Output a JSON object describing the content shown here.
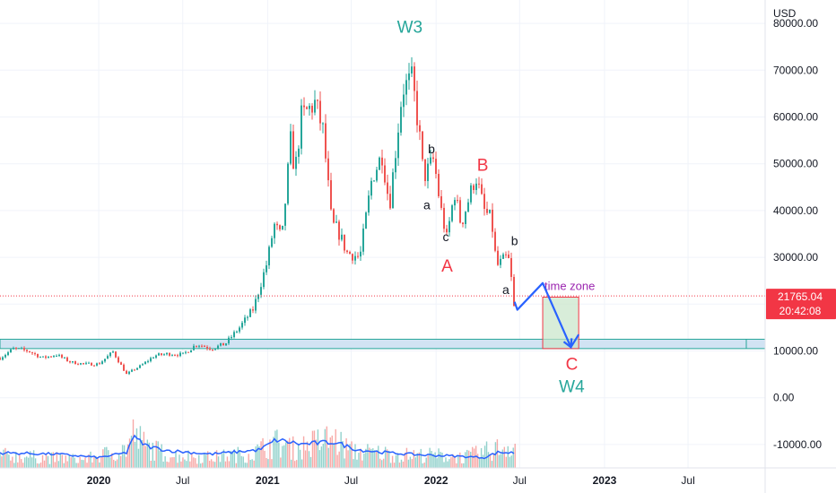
{
  "chart_data": {
    "type": "candlestick",
    "symbol_currency": "USD",
    "y_axis": {
      "min": -15000,
      "max": 85000,
      "ticks": [
        80000,
        70000,
        60000,
        50000,
        40000,
        30000,
        20000,
        10000,
        0,
        -10000
      ],
      "tick_labels": [
        "80000.00",
        "70000.00",
        "60000.00",
        "50000.00",
        "40000.00",
        "30000.00",
        "20000.00",
        "10000.00",
        "0.00",
        "-10000.00"
      ]
    },
    "x_axis": {
      "start": "2019-06-01",
      "end": "2023-12-15",
      "ticks": [
        {
          "date": "2020-01-01",
          "label": "2020",
          "bold": true
        },
        {
          "date": "2020-07-01",
          "label": "Jul",
          "bold": false
        },
        {
          "date": "2021-01-01",
          "label": "2021",
          "bold": true
        },
        {
          "date": "2021-07-01",
          "label": "Jul",
          "bold": false
        },
        {
          "date": "2022-01-01",
          "label": "2022",
          "bold": true
        },
        {
          "date": "2022-07-01",
          "label": "Jul",
          "bold": false
        },
        {
          "date": "2023-01-01",
          "label": "2023",
          "bold": true
        },
        {
          "date": "2023-07-01",
          "label": "Jul",
          "bold": false
        }
      ]
    },
    "price_series": [
      [
        "2019-06-01",
        8500
      ],
      [
        "2019-07-01",
        10500
      ],
      [
        "2019-08-01",
        10000
      ],
      [
        "2019-09-01",
        8500
      ],
      [
        "2019-10-01",
        9200
      ],
      [
        "2019-11-01",
        7600
      ],
      [
        "2019-12-01",
        7200
      ],
      [
        "2020-01-01",
        7200
      ],
      [
        "2020-02-01",
        9800
      ],
      [
        "2020-03-01",
        5000
      ],
      [
        "2020-03-20",
        6200
      ],
      [
        "2020-04-01",
        6800
      ],
      [
        "2020-05-01",
        9000
      ],
      [
        "2020-06-01",
        9400
      ],
      [
        "2020-07-01",
        9200
      ],
      [
        "2020-08-01",
        11500
      ],
      [
        "2020-09-01",
        10500
      ],
      [
        "2020-10-01",
        11500
      ],
      [
        "2020-11-01",
        15000
      ],
      [
        "2020-12-01",
        19000
      ],
      [
        "2020-12-31",
        29000
      ],
      [
        "2021-01-15",
        37000
      ],
      [
        "2021-02-01",
        34000
      ],
      [
        "2021-02-20",
        55000
      ],
      [
        "2021-03-01",
        48000
      ],
      [
        "2021-03-15",
        60000
      ],
      [
        "2021-04-14",
        63000
      ],
      [
        "2021-05-01",
        57000
      ],
      [
        "2021-05-20",
        37000
      ],
      [
        "2021-06-01",
        36000
      ],
      [
        "2021-06-22",
        31000
      ],
      [
        "2021-07-20",
        30000
      ],
      [
        "2021-08-15",
        47000
      ],
      [
        "2021-09-06",
        52000
      ],
      [
        "2021-09-22",
        41000
      ],
      [
        "2021-10-20",
        66000
      ],
      [
        "2021-11-10",
        68000
      ],
      [
        "2021-11-25",
        57000
      ],
      [
        "2021-12-05",
        47000
      ],
      [
        "2021-12-27",
        51000
      ],
      [
        "2022-01-10",
        41000
      ],
      [
        "2022-01-24",
        34000
      ],
      [
        "2022-02-10",
        44000
      ],
      [
        "2022-02-24",
        37000
      ],
      [
        "2022-03-28",
        47500
      ],
      [
        "2022-04-15",
        40000
      ],
      [
        "2022-05-01",
        38000
      ],
      [
        "2022-05-12",
        28000
      ],
      [
        "2022-06-01",
        30000
      ],
      [
        "2022-06-10",
        29000
      ],
      [
        "2022-06-18",
        19000
      ],
      [
        "2022-06-24",
        21765
      ]
    ],
    "volume": {
      "axis_range": [
        0,
        16000
      ],
      "series": [
        [
          "2019-06-01",
          3000
        ],
        [
          "2019-09-01",
          2500
        ],
        [
          "2019-12-01",
          2000
        ],
        [
          "2020-03-01",
          4500
        ],
        [
          "2020-03-15",
          8000
        ],
        [
          "2020-04-15",
          5000
        ],
        [
          "2020-06-01",
          3000
        ],
        [
          "2020-09-01",
          2500
        ],
        [
          "2020-12-01",
          3500
        ],
        [
          "2021-01-15",
          6000
        ],
        [
          "2021-03-01",
          4500
        ],
        [
          "2021-05-20",
          7000
        ],
        [
          "2021-07-01",
          4000
        ],
        [
          "2021-09-01",
          3500
        ],
        [
          "2021-11-01",
          3000
        ],
        [
          "2022-01-01",
          3000
        ],
        [
          "2022-03-01",
          2500
        ],
        [
          "2022-05-12",
          4500
        ],
        [
          "2022-06-18",
          5500
        ]
      ],
      "ma": [
        [
          "2019-06-01",
          3500
        ],
        [
          "2019-10-01",
          3200
        ],
        [
          "2020-01-01",
          2400
        ],
        [
          "2020-03-01",
          3500
        ],
        [
          "2020-03-15",
          7200
        ],
        [
          "2020-04-15",
          5000
        ],
        [
          "2020-06-01",
          4000
        ],
        [
          "2020-09-01",
          3200
        ],
        [
          "2020-12-15",
          4200
        ],
        [
          "2021-01-20",
          6500
        ],
        [
          "2021-03-15",
          5500
        ],
        [
          "2021-05-25",
          6000
        ],
        [
          "2021-07-15",
          4200
        ],
        [
          "2021-09-20",
          3500
        ],
        [
          "2021-12-01",
          3000
        ],
        [
          "2022-02-01",
          2800
        ],
        [
          "2022-04-15",
          2400
        ],
        [
          "2022-05-15",
          3600
        ],
        [
          "2022-06-18",
          3500
        ]
      ]
    },
    "support_zone": {
      "y_low": 10500,
      "y_high": 12500,
      "x_start": "2019-06-01",
      "x_end": "2023-12-15"
    },
    "current_price": {
      "value": 21765.04,
      "label": "21765.04",
      "countdown": "20:42:08"
    },
    "projection_path": [
      [
        "2022-06-20",
        20500
      ],
      [
        "2022-06-26",
        18800
      ],
      [
        "2022-08-20",
        24500
      ],
      [
        "2022-10-20",
        10800
      ],
      [
        "2022-11-06",
        13500
      ]
    ],
    "time_zone_box": {
      "x_start": "2022-08-20",
      "x_end": "2022-11-06",
      "y_low": 10500,
      "y_high": 21500,
      "label": "time zone"
    },
    "annotations": [
      {
        "text": "W3",
        "date": "2021-11-05",
        "value": 78000,
        "color": "#26a69a",
        "size": 19
      },
      {
        "text": "b",
        "date": "2021-12-22",
        "value": 52200,
        "color": "#131722",
        "size": 14
      },
      {
        "text": "a",
        "date": "2021-12-12",
        "value": 40300,
        "color": "#131722",
        "size": 14
      },
      {
        "text": "c",
        "date": "2022-01-22",
        "value": 33500,
        "color": "#131722",
        "size": 14
      },
      {
        "text": "A",
        "date": "2022-01-25",
        "value": 27000,
        "color": "#f23645",
        "size": 19
      },
      {
        "text": "B",
        "date": "2022-04-12",
        "value": 48500,
        "color": "#f23645",
        "size": 19
      },
      {
        "text": "b",
        "date": "2022-06-20",
        "value": 32600,
        "color": "#131722",
        "size": 14
      },
      {
        "text": "a",
        "date": "2022-06-01",
        "value": 22200,
        "color": "#131722",
        "size": 14
      },
      {
        "text": "C",
        "date": "2022-10-22",
        "value": 6000,
        "color": "#f23645",
        "size": 19
      },
      {
        "text": "W4",
        "date": "2022-10-22",
        "value": 1200,
        "color": "#26a69a",
        "size": 19
      }
    ],
    "colors": {
      "up": "#26a69a",
      "down": "#ef5350",
      "projection": "#2962ff",
      "zone_fill": "#c8e6c9",
      "zone_border": "#f23645",
      "support_fill": "#d1e3f3",
      "support_border": "#26a69a",
      "label_purple": "#9c27b0",
      "price_tag": "#f23645",
      "volume_ma": "#2962ff"
    }
  }
}
